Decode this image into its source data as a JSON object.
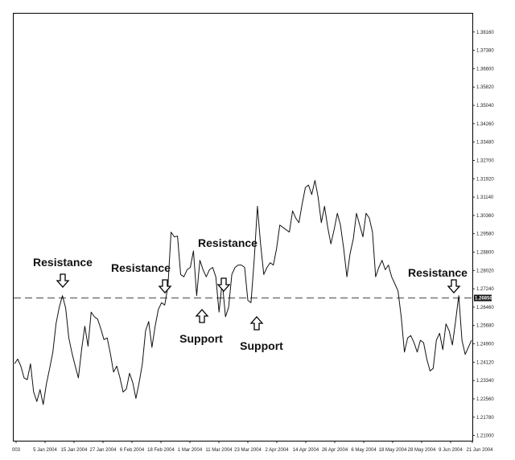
{
  "chart_data": {
    "type": "line",
    "title": "",
    "xlabel": "",
    "ylabel": "",
    "ylim": [
      1.2078,
      1.3894
    ],
    "grid": false,
    "x_tick_labels": [
      "003",
      "5 Jan 2004",
      "15 Jan 2004",
      "27 Jan 2004",
      "6 Feb 2004",
      "18 Feb 2004",
      "1 Mar 2004",
      "11 Mar 2004",
      "23 Mar 2004",
      "2 Apr 2004",
      "14 Apr 2004",
      "26 Apr 2004",
      "6 May 2004",
      "18 May 2004",
      "28 May 2004",
      "9 Jun 2004",
      "21 Jun 2004"
    ],
    "y_tick_labels": [
      "1.38160",
      "1.37380",
      "1.36600",
      "1.35820",
      "1.35040",
      "1.34260",
      "1.33480",
      "1.32700",
      "1.31920",
      "1.31140",
      "1.30360",
      "1.29580",
      "1.28800",
      "1.28020",
      "1.27240",
      "1.26460",
      "1.25680",
      "1.24900",
      "1.24120",
      "1.23340",
      "1.22560",
      "1.21780",
      "1.21000"
    ],
    "y_ticks": [
      1.3816,
      1.3738,
      1.366,
      1.3582,
      1.3504,
      1.3426,
      1.3348,
      1.327,
      1.3192,
      1.3114,
      1.3036,
      1.2958,
      1.288,
      1.2802,
      1.2724,
      1.2646,
      1.2568,
      1.249,
      1.2412,
      1.2334,
      1.2256,
      1.2178,
      1.21
    ],
    "horizontal_line": {
      "value": 1.2685,
      "label": "1.26850"
    },
    "series": [
      {
        "values": [
          1.2405,
          1.2425,
          1.2395,
          1.2345,
          1.2338,
          1.2405,
          1.2285,
          1.2245,
          1.2295,
          1.2232,
          1.232,
          1.2385,
          1.2455,
          1.2575,
          1.2645,
          1.2695,
          1.2642,
          1.2515,
          1.245,
          1.2395,
          1.2345,
          1.2465,
          1.2565,
          1.248,
          1.2625,
          1.2605,
          1.2595,
          1.2555,
          1.2508,
          1.2515,
          1.2448,
          1.237,
          1.2395,
          1.2345,
          1.2285,
          1.2298,
          1.2365,
          1.2325,
          1.2258,
          1.2325,
          1.2405,
          1.2545,
          1.2585,
          1.2475,
          1.2565,
          1.2635,
          1.2665,
          1.2655,
          1.2735,
          1.2965,
          1.2945,
          1.2948,
          1.2785,
          1.2775,
          1.2805,
          1.2815,
          1.2885,
          1.2695,
          1.2845,
          1.2805,
          1.2775,
          1.2805,
          1.2815,
          1.2775,
          1.2625,
          1.2755,
          1.2605,
          1.2645,
          1.2785,
          1.2815,
          1.2825,
          1.2825,
          1.2815,
          1.2675,
          1.2665,
          1.2848,
          1.3075,
          1.2915,
          1.2785,
          1.2815,
          1.2835,
          1.2825,
          1.2895,
          1.2995,
          1.2985,
          1.2975,
          1.2965,
          1.3055,
          1.3025,
          1.3005,
          1.3085,
          1.3155,
          1.3165,
          1.3125,
          1.3185,
          1.3115,
          1.3005,
          1.3075,
          1.2985,
          1.2915,
          1.2975,
          1.3045,
          1.2995,
          1.2895,
          1.2775,
          1.2875,
          1.2935,
          1.3045,
          1.2995,
          1.2945,
          1.3045,
          1.3025,
          1.2965,
          1.2775,
          1.2815,
          1.2845,
          1.2805,
          1.2825,
          1.2775,
          1.2745,
          1.2715,
          1.2605,
          1.2455,
          1.2515,
          1.2525,
          1.2495,
          1.2455,
          1.2505,
          1.2495,
          1.2425,
          1.2375,
          1.2385,
          1.2505,
          1.2535,
          1.2465,
          1.2575,
          1.2545,
          1.2485,
          1.2585,
          1.2695,
          1.2505,
          1.2445,
          1.2475,
          1.2505
        ]
      }
    ],
    "annotations": [
      {
        "text": "Resistance",
        "arrow": "down"
      },
      {
        "text": "Resistance",
        "arrow": "down"
      },
      {
        "text": "Resistance",
        "arrow": "down"
      },
      {
        "text": "Support",
        "arrow": "up"
      },
      {
        "text": "Support",
        "arrow": "up"
      },
      {
        "text": "Resistance",
        "arrow": "down"
      }
    ]
  }
}
